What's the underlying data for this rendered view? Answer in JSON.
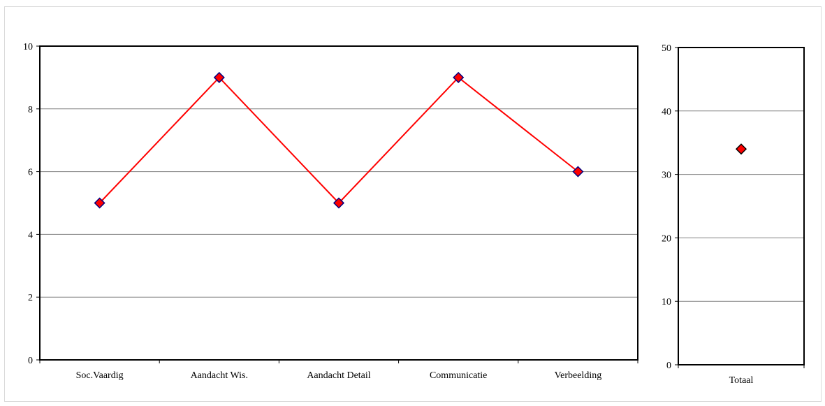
{
  "chart_data": [
    {
      "type": "line",
      "categories": [
        "Soc.Vaardig",
        "Aandacht Wis.",
        "Aandacht Detail",
        "Communicatie",
        "Verbeelding"
      ],
      "values": [
        5,
        9,
        5,
        9,
        6
      ],
      "ylim": [
        0,
        10
      ],
      "yticks": [
        0,
        2,
        4,
        6,
        8,
        10
      ],
      "grid": true,
      "line_color": "#ff0000",
      "marker": "diamond",
      "marker_fill": "#ff0000",
      "marker_stroke": "#000080"
    },
    {
      "type": "scatter",
      "categories": [
        "Totaal"
      ],
      "values": [
        34
      ],
      "ylim": [
        0,
        50
      ],
      "yticks": [
        0,
        10,
        20,
        30,
        40,
        50
      ],
      "grid": true,
      "marker": "diamond",
      "marker_fill": "#ff0000",
      "marker_stroke": "#000000"
    }
  ]
}
